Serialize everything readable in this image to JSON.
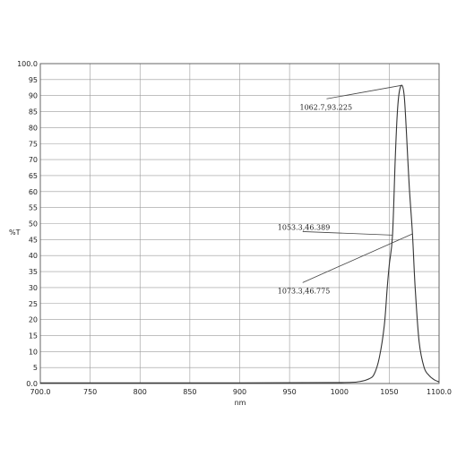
{
  "chart_data": {
    "type": "line",
    "title": "",
    "xlabel": "nm",
    "ylabel": "%T",
    "xlim": [
      700,
      1100
    ],
    "ylim": [
      0,
      100
    ],
    "grid": true,
    "x_ticks": [
      700,
      750,
      800,
      850,
      900,
      950,
      1000,
      1050,
      1100
    ],
    "x_tick_labels": [
      "700.0",
      "750",
      "800",
      "850",
      "900",
      "950",
      "1000",
      "1050",
      "1100.0"
    ],
    "y_ticks": [
      0,
      5,
      10,
      15,
      20,
      25,
      30,
      35,
      40,
      45,
      50,
      55,
      60,
      65,
      70,
      75,
      80,
      85,
      90,
      95,
      100
    ],
    "y_tick_labels": [
      "0.0",
      "5",
      "10",
      "15",
      "20",
      "25",
      "30",
      "35",
      "40",
      "45",
      "50",
      "55",
      "60",
      "65",
      "70",
      "75",
      "80",
      "85",
      "90",
      "95",
      "100.0"
    ],
    "series": [
      {
        "x": [
          700,
          900,
          1000,
          1020,
          1030,
          1035,
          1040,
          1045,
          1048,
          1050,
          1053.3,
          1056,
          1058,
          1060,
          1062.7,
          1065,
          1067,
          1070,
          1073.3,
          1076,
          1080,
          1085,
          1090,
          1095,
          1100
        ],
        "y": [
          0.2,
          0.2,
          0.3,
          0.6,
          1.5,
          3,
          8,
          18,
          30,
          37,
          46.389,
          70,
          84,
          91,
          93.225,
          90,
          80,
          62,
          46.775,
          30,
          13,
          5,
          2.5,
          1.2,
          0.5
        ]
      }
    ],
    "annotations": [
      {
        "text": "1062.7,93.225",
        "x": 1062.7,
        "y": 93.225,
        "label_x": 980,
        "label_y": 89
      },
      {
        "text": "1053.3,46.389",
        "x": 1053.3,
        "y": 46.389,
        "label_x": 938,
        "label_y": 47.5
      },
      {
        "text": "1073.3,46.775",
        "x": 1073.3,
        "y": 46.775,
        "label_x": 938,
        "label_y": 31
      }
    ]
  }
}
